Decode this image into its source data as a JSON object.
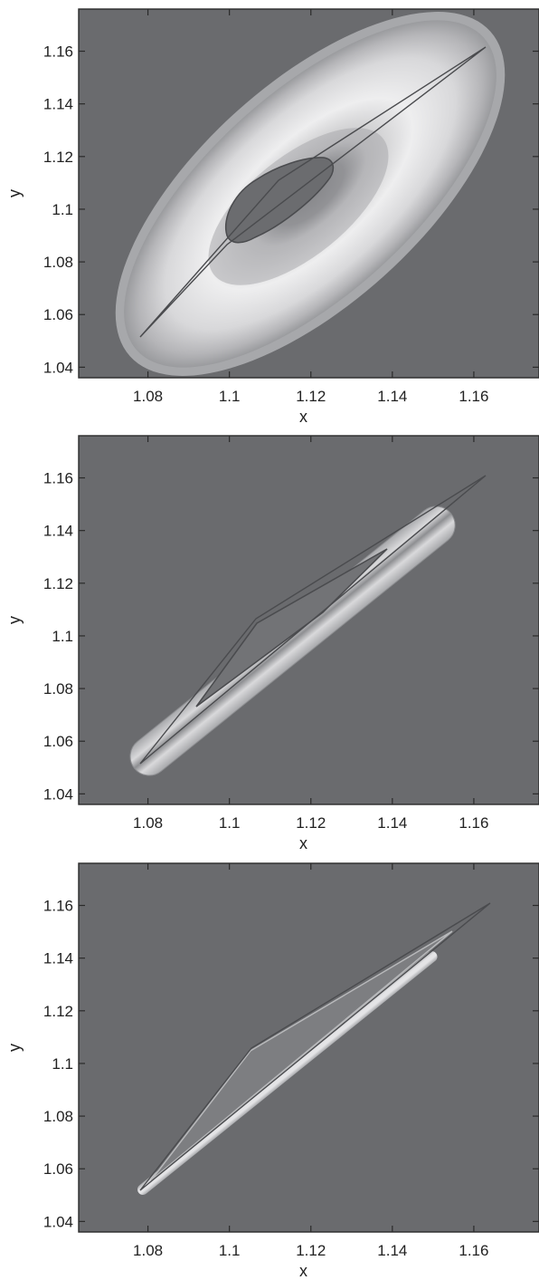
{
  "chart_data": [
    {
      "type": "contour",
      "xlabel": "x",
      "ylabel": "y",
      "xlim": [
        1.063,
        1.176
      ],
      "ylim": [
        1.036,
        1.176
      ],
      "xticks": [
        "1.08",
        "1.1",
        "1.12",
        "1.14",
        "1.16"
      ],
      "yticks": [
        "1.04",
        "1.06",
        "1.08",
        "1.1",
        "1.12",
        "1.14",
        "1.16"
      ],
      "colors": {
        "background": "#6a6b6e",
        "outline": "#4a4b4e"
      },
      "region": {
        "spine": [
          [
            1.078,
            1.052
          ],
          [
            1.161,
            1.162
          ]
        ],
        "half_width": 0.0185,
        "center": [
          1.113,
          1.104
        ],
        "inner_half_width": 0.006
      },
      "polygon": [
        [
          1.078,
          1.052
        ],
        [
          1.102,
          1.096
        ],
        [
          1.161,
          1.162
        ],
        [
          1.114,
          1.109
        ]
      ]
    },
    {
      "type": "contour",
      "xlabel": "x",
      "ylabel": "y",
      "xlim": [
        1.063,
        1.176
      ],
      "ylim": [
        1.036,
        1.176
      ],
      "xticks": [
        "1.08",
        "1.1",
        "1.12",
        "1.14",
        "1.16"
      ],
      "yticks": [
        "1.04",
        "1.06",
        "1.08",
        "1.1",
        "1.12",
        "1.14",
        "1.16"
      ],
      "colors": {
        "background": "#6a6b6e",
        "outline": "#4a4b4e"
      },
      "region": {
        "spine": [
          [
            1.08,
            1.055
          ],
          [
            1.16,
            1.16
          ]
        ],
        "half_width": 0.0065
      },
      "polygon": [
        [
          1.078,
          1.052
        ],
        [
          1.105,
          1.107
        ],
        [
          1.161,
          1.162
        ]
      ]
    },
    {
      "type": "contour",
      "xlabel": "x",
      "ylabel": "y",
      "xlim": [
        1.063,
        1.176
      ],
      "ylim": [
        1.036,
        1.176
      ],
      "xticks": [
        "1.08",
        "1.1",
        "1.12",
        "1.14",
        "1.16"
      ],
      "yticks": [
        "1.04",
        "1.06",
        "1.08",
        "1.1",
        "1.12",
        "1.14",
        "1.16"
      ],
      "colors": {
        "background": "#6a6b6e",
        "outline": "#4a4b4e"
      },
      "region": {
        "spine": [
          [
            1.08,
            1.055
          ],
          [
            1.16,
            1.16
          ]
        ],
        "half_width": 0.0018
      },
      "polygon": [
        [
          1.078,
          1.052
        ],
        [
          1.105,
          1.106
        ],
        [
          1.162,
          1.161
        ]
      ]
    }
  ]
}
